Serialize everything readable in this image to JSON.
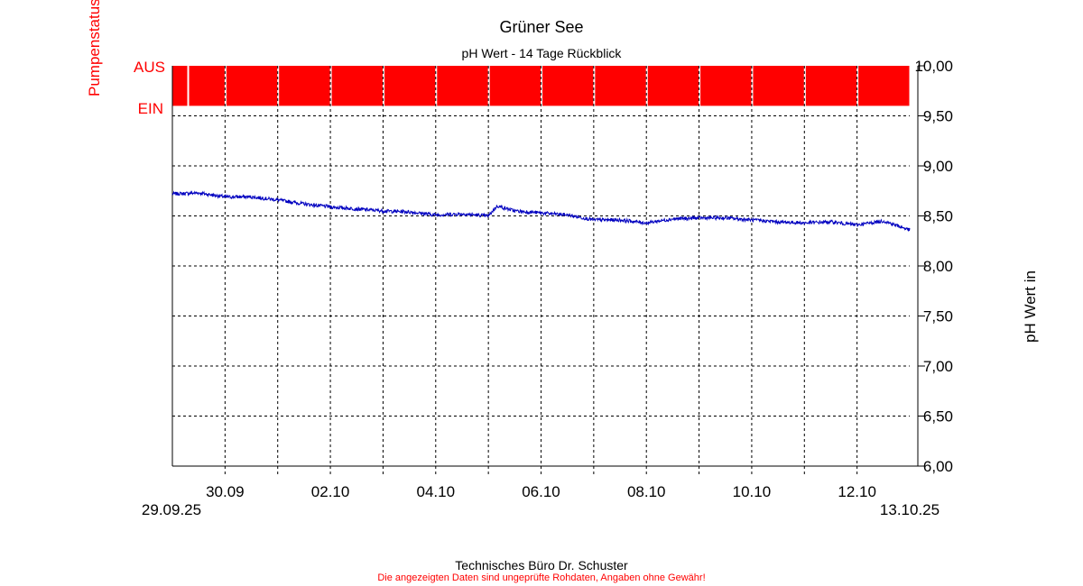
{
  "chart_data": {
    "type": "line",
    "title": "Grüner See",
    "subtitle": "pH Wert - 14 Tage Rückblick",
    "ylabel": "pH Wert in",
    "y2label": "Pumpenstatus",
    "ylim": [
      6.0,
      10.0
    ],
    "yticks": [
      "6,00",
      "6,50",
      "7,00",
      "7,50",
      "8,00",
      "8,50",
      "9,00",
      "9,50",
      "10,00"
    ],
    "xlim": [
      "2025-09-29 00:00",
      "2025-10-13 00:00"
    ],
    "xticks": [
      "30.09",
      "02.10",
      "04.10",
      "06.10",
      "08.10",
      "10.10",
      "12.10"
    ],
    "xstart_label": "29.09.25",
    "xend_label": "13.10.25",
    "grid": true,
    "pump_axis": {
      "off_label": "AUS",
      "on_label": "EIN"
    },
    "pump_status": {
      "state": "AUS",
      "gaps": [
        "2025-09-29 07:00",
        "2025-09-30 00:00",
        "2025-10-01 00:00",
        "2025-10-02 00:00",
        "2025-10-03 00:00",
        "2025-10-04 00:00",
        "2025-10-05 00:00",
        "2025-10-06 00:00",
        "2025-10-07 00:00",
        "2025-10-08 00:00",
        "2025-10-09 00:00",
        "2025-10-10 00:00",
        "2025-10-11 00:00",
        "2025-10-12 00:00"
      ],
      "end": "2025-10-13 00:00"
    },
    "series": [
      {
        "color": "#0000c0",
        "x": [
          "2025-09-29 00:00",
          "2025-09-29 12:00",
          "2025-09-30 00:00",
          "2025-09-30 12:00",
          "2025-10-01 00:00",
          "2025-10-01 12:00",
          "2025-10-02 00:00",
          "2025-10-02 12:00",
          "2025-10-03 00:00",
          "2025-10-03 12:00",
          "2025-10-04 00:00",
          "2025-10-04 12:00",
          "2025-10-05 00:00",
          "2025-10-05 04:00",
          "2025-10-05 12:00",
          "2025-10-06 00:00",
          "2025-10-06 12:00",
          "2025-10-07 00:00",
          "2025-10-07 12:00",
          "2025-10-08 00:00",
          "2025-10-08 12:00",
          "2025-10-09 00:00",
          "2025-10-09 12:00",
          "2025-10-10 00:00",
          "2025-10-10 12:00",
          "2025-10-11 00:00",
          "2025-10-11 12:00",
          "2025-10-12 00:00",
          "2025-10-12 12:00",
          "2025-10-13 00:00"
        ],
        "values": [
          8.72,
          8.73,
          8.69,
          8.69,
          8.66,
          8.62,
          8.59,
          8.57,
          8.55,
          8.54,
          8.51,
          8.52,
          8.5,
          8.6,
          8.55,
          8.53,
          8.51,
          8.46,
          8.46,
          8.43,
          8.47,
          8.48,
          8.48,
          8.46,
          8.44,
          8.43,
          8.44,
          8.41,
          8.45,
          8.36
        ]
      }
    ]
  },
  "footer": {
    "credit": "Technisches Büro Dr. Schuster",
    "disclaimer": "Die angezeigten Daten sind ungeprüfte Rohdaten, Angaben ohne Gewähr!"
  }
}
